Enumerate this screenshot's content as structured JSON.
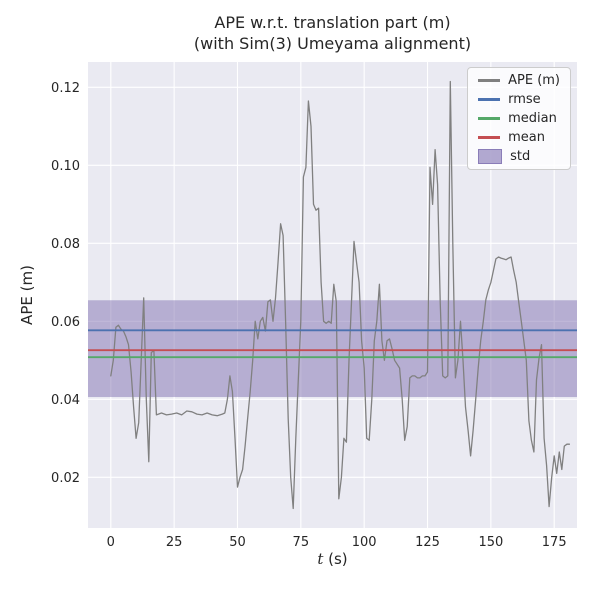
{
  "chart_data": {
    "type": "line",
    "title_lines": [
      "APE w.r.t. translation part (m)",
      "(with Sim(3) Umeyama alignment)"
    ],
    "xlabel": {
      "text": "t (s)",
      "symbol": "t",
      "suffix": " (s)"
    },
    "ylabel": "APE (m)",
    "xlim": [
      -9,
      184
    ],
    "ylim": [
      0.007,
      0.1265
    ],
    "xticks": [
      0,
      25,
      50,
      75,
      100,
      125,
      150,
      175
    ],
    "xtick_labels": [
      "0",
      "25",
      "50",
      "75",
      "100",
      "125",
      "150",
      "175"
    ],
    "yticks": [
      0.02,
      0.04,
      0.06,
      0.08,
      0.1,
      0.12
    ],
    "ytick_labels": [
      "0.02",
      "0.04",
      "0.06",
      "0.08",
      "0.10",
      "0.12"
    ],
    "grid": true,
    "legend_position": "upper right",
    "colors": {
      "axes_background": "#eaeaf2",
      "grid": "#ffffff",
      "text": "#262626"
    },
    "series": [
      {
        "name": "std",
        "type": "band",
        "color": "#8172b2",
        "opacity": 0.5,
        "ymin": 0.0406,
        "ymax": 0.0654
      },
      {
        "name": "APE (m)",
        "type": "line",
        "color": "#808080",
        "width": 1.3,
        "points": [
          [
            0,
            0.046
          ],
          [
            1,
            0.05
          ],
          [
            2,
            0.0585
          ],
          [
            3,
            0.059
          ],
          [
            4,
            0.058
          ],
          [
            5,
            0.0575
          ],
          [
            6,
            0.056
          ],
          [
            7,
            0.054
          ],
          [
            8,
            0.047
          ],
          [
            9,
            0.038
          ],
          [
            10,
            0.03
          ],
          [
            11,
            0.034
          ],
          [
            12,
            0.05
          ],
          [
            13,
            0.066
          ],
          [
            14,
            0.04
          ],
          [
            15,
            0.024
          ],
          [
            16,
            0.052
          ],
          [
            17,
            0.0525
          ],
          [
            18,
            0.036
          ],
          [
            20,
            0.0365
          ],
          [
            22,
            0.036
          ],
          [
            24,
            0.0362
          ],
          [
            26,
            0.0365
          ],
          [
            28,
            0.036
          ],
          [
            30,
            0.037
          ],
          [
            32,
            0.0368
          ],
          [
            34,
            0.0362
          ],
          [
            36,
            0.036
          ],
          [
            38,
            0.0365
          ],
          [
            40,
            0.036
          ],
          [
            42,
            0.0358
          ],
          [
            44,
            0.0362
          ],
          [
            45,
            0.0365
          ],
          [
            46,
            0.04
          ],
          [
            47,
            0.046
          ],
          [
            48,
            0.042
          ],
          [
            49,
            0.03
          ],
          [
            50,
            0.0175
          ],
          [
            51,
            0.02
          ],
          [
            52,
            0.022
          ],
          [
            53,
            0.028
          ],
          [
            54,
            0.035
          ],
          [
            55,
            0.042
          ],
          [
            56,
            0.05
          ],
          [
            57,
            0.06
          ],
          [
            58,
            0.0555
          ],
          [
            59,
            0.06
          ],
          [
            60,
            0.061
          ],
          [
            61,
            0.0575
          ],
          [
            62,
            0.065
          ],
          [
            63,
            0.0655
          ],
          [
            64,
            0.06
          ],
          [
            65,
            0.066
          ],
          [
            66,
            0.075
          ],
          [
            67,
            0.085
          ],
          [
            68,
            0.082
          ],
          [
            69,
            0.06
          ],
          [
            70,
            0.035
          ],
          [
            71,
            0.02
          ],
          [
            72,
            0.012
          ],
          [
            73,
            0.03
          ],
          [
            74,
            0.045
          ],
          [
            75,
            0.06
          ],
          [
            76,
            0.097
          ],
          [
            77,
            0.0995
          ],
          [
            78,
            0.1165
          ],
          [
            79,
            0.11
          ],
          [
            80,
            0.09
          ],
          [
            81,
            0.0885
          ],
          [
            82,
            0.089
          ],
          [
            83,
            0.07
          ],
          [
            84,
            0.06
          ],
          [
            85,
            0.0595
          ],
          [
            86,
            0.06
          ],
          [
            87,
            0.0595
          ],
          [
            88,
            0.0695
          ],
          [
            89,
            0.065
          ],
          [
            90,
            0.0145
          ],
          [
            91,
            0.02
          ],
          [
            92,
            0.03
          ],
          [
            93,
            0.029
          ],
          [
            94,
            0.05
          ],
          [
            95,
            0.065
          ],
          [
            96,
            0.0805
          ],
          [
            97,
            0.075
          ],
          [
            98,
            0.07
          ],
          [
            99,
            0.055
          ],
          [
            100,
            0.048
          ],
          [
            101,
            0.03
          ],
          [
            102,
            0.0295
          ],
          [
            103,
            0.04
          ],
          [
            104,
            0.055
          ],
          [
            105,
            0.06
          ],
          [
            106,
            0.0695
          ],
          [
            107,
            0.055
          ],
          [
            108,
            0.05
          ],
          [
            109,
            0.055
          ],
          [
            110,
            0.0555
          ],
          [
            111,
            0.053
          ],
          [
            112,
            0.05
          ],
          [
            113,
            0.049
          ],
          [
            114,
            0.048
          ],
          [
            115,
            0.04
          ],
          [
            116,
            0.0295
          ],
          [
            117,
            0.033
          ],
          [
            118,
            0.0455
          ],
          [
            119,
            0.046
          ],
          [
            120,
            0.046
          ],
          [
            121,
            0.0455
          ],
          [
            122,
            0.0455
          ],
          [
            123,
            0.046
          ],
          [
            124,
            0.046
          ],
          [
            125,
            0.047
          ],
          [
            126,
            0.0995
          ],
          [
            127,
            0.09
          ],
          [
            128,
            0.104
          ],
          [
            129,
            0.095
          ],
          [
            130,
            0.065
          ],
          [
            131,
            0.046
          ],
          [
            132,
            0.0455
          ],
          [
            133,
            0.046
          ],
          [
            134,
            0.1215
          ],
          [
            135,
            0.08
          ],
          [
            136,
            0.0455
          ],
          [
            137,
            0.05
          ],
          [
            138,
            0.06
          ],
          [
            139,
            0.05
          ],
          [
            140,
            0.038
          ],
          [
            141,
            0.032
          ],
          [
            142,
            0.0255
          ],
          [
            143,
            0.032
          ],
          [
            144,
            0.04
          ],
          [
            145,
            0.048
          ],
          [
            146,
            0.055
          ],
          [
            147,
            0.06
          ],
          [
            148,
            0.0655
          ],
          [
            149,
            0.068
          ],
          [
            150,
            0.07
          ],
          [
            151,
            0.073
          ],
          [
            152,
            0.076
          ],
          [
            153,
            0.0765
          ],
          [
            154,
            0.0762
          ],
          [
            155,
            0.076
          ],
          [
            156,
            0.0758
          ],
          [
            157,
            0.0762
          ],
          [
            158,
            0.0765
          ],
          [
            159,
            0.073
          ],
          [
            160,
            0.07
          ],
          [
            161,
            0.065
          ],
          [
            162,
            0.06
          ],
          [
            163,
            0.055
          ],
          [
            164,
            0.05
          ],
          [
            165,
            0.0345
          ],
          [
            166,
            0.0295
          ],
          [
            167,
            0.0265
          ],
          [
            168,
            0.045
          ],
          [
            169,
            0.0505
          ],
          [
            170,
            0.054
          ],
          [
            171,
            0.03
          ],
          [
            172,
            0.023
          ],
          [
            173,
            0.0125
          ],
          [
            174,
            0.02
          ],
          [
            175,
            0.0255
          ],
          [
            176,
            0.021
          ],
          [
            177,
            0.0265
          ],
          [
            178,
            0.022
          ],
          [
            179,
            0.028
          ],
          [
            180,
            0.0285
          ],
          [
            181,
            0.0285
          ]
        ]
      },
      {
        "name": "rmse",
        "type": "hline",
        "color": "#4c72b0",
        "width": 1.8,
        "value": 0.0577
      },
      {
        "name": "median",
        "type": "hline",
        "color": "#55a868",
        "width": 1.8,
        "value": 0.0508
      },
      {
        "name": "mean",
        "type": "hline",
        "color": "#c44e52",
        "width": 1.8,
        "value": 0.0526
      }
    ],
    "legend": [
      {
        "label": "APE (m)",
        "type": "line",
        "color": "#808080"
      },
      {
        "label": "rmse",
        "type": "line",
        "color": "#4c72b0"
      },
      {
        "label": "median",
        "type": "line",
        "color": "#55a868"
      },
      {
        "label": "mean",
        "type": "line",
        "color": "#c44e52"
      },
      {
        "label": "std",
        "type": "patch",
        "color": "#8172b2"
      }
    ]
  }
}
